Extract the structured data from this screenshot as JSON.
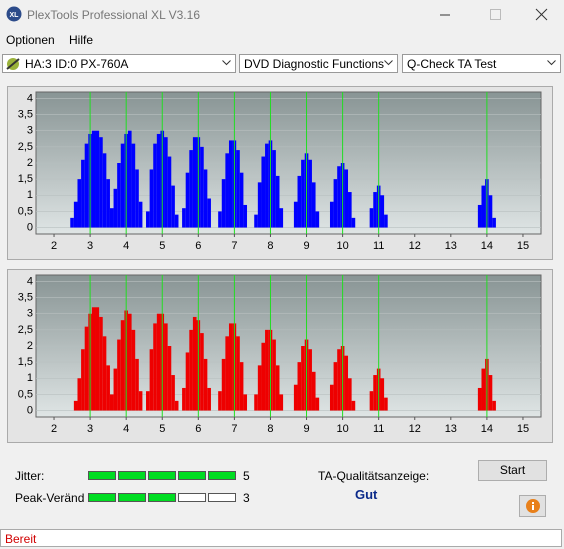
{
  "window": {
    "title": "PlexTools Professional XL V3.16"
  },
  "menu": [
    "Optionen",
    "Hilfe"
  ],
  "toolbar": {
    "drive": "HA:3 ID:0  PX-760A",
    "function": "DVD Diagnostic Functions",
    "test": "Q-Check TA Test"
  },
  "chart_data": [
    {
      "type": "bar",
      "color": "#0000ff",
      "marker_color": "#22dd22",
      "grid": true,
      "xlim": [
        1.5,
        15.5
      ],
      "ylim": [
        -0.2,
        4.2
      ],
      "xticks": [
        2,
        3,
        4,
        5,
        6,
        7,
        8,
        9,
        10,
        11,
        12,
        13,
        14,
        15
      ],
      "yticks": [
        0,
        {
          "value": 0.5,
          "label": "0,5"
        },
        1,
        {
          "value": 1.5,
          "label": "1,5"
        },
        2,
        {
          "value": 2.5,
          "label": "2,5"
        },
        3,
        {
          "value": 3.5,
          "label": "3,5"
        },
        4
      ],
      "markers": [
        3,
        4,
        5,
        6,
        7,
        8,
        9,
        10,
        11,
        14
      ],
      "x": [
        2.5,
        2.6,
        2.7,
        2.8,
        2.9,
        3.0,
        3.1,
        3.2,
        3.3,
        3.4,
        3.5,
        3.6,
        3.7,
        3.8,
        3.9,
        4.0,
        4.1,
        4.2,
        4.3,
        4.4,
        4.6,
        4.7,
        4.8,
        4.9,
        5.0,
        5.1,
        5.2,
        5.3,
        5.4,
        5.6,
        5.7,
        5.8,
        5.9,
        6.0,
        6.1,
        6.2,
        6.3,
        6.6,
        6.7,
        6.8,
        6.9,
        7.0,
        7.1,
        7.2,
        7.3,
        7.6,
        7.7,
        7.8,
        7.9,
        8.0,
        8.1,
        8.2,
        8.3,
        8.7,
        8.8,
        8.9,
        9.0,
        9.1,
        9.2,
        9.3,
        9.7,
        9.8,
        9.9,
        10.0,
        10.1,
        10.2,
        10.3,
        10.8,
        10.9,
        11.0,
        11.1,
        11.2,
        13.8,
        13.9,
        14.0,
        14.1,
        14.2
      ],
      "values": [
        0.3,
        0.8,
        1.5,
        2.1,
        2.6,
        2.9,
        3.0,
        3.0,
        2.8,
        2.3,
        1.5,
        0.6,
        1.2,
        2.0,
        2.6,
        2.9,
        3.0,
        2.6,
        1.8,
        0.8,
        0.5,
        1.8,
        2.6,
        2.9,
        3.0,
        2.8,
        2.2,
        1.3,
        0.4,
        0.6,
        1.7,
        2.4,
        2.8,
        2.8,
        2.5,
        1.8,
        0.9,
        0.5,
        1.5,
        2.3,
        2.7,
        2.7,
        2.4,
        1.7,
        0.7,
        0.4,
        1.4,
        2.2,
        2.6,
        2.7,
        2.4,
        1.6,
        0.6,
        0.8,
        1.6,
        2.1,
        2.3,
        2.1,
        1.4,
        0.5,
        0.8,
        1.5,
        1.9,
        2.0,
        1.8,
        1.1,
        0.3,
        0.6,
        1.1,
        1.3,
        1.0,
        0.4,
        0.7,
        1.3,
        1.5,
        1.0,
        0.3
      ]
    },
    {
      "type": "bar",
      "color": "#ee0000",
      "marker_color": "#22dd22",
      "grid": true,
      "xlim": [
        1.5,
        15.5
      ],
      "ylim": [
        -0.2,
        4.2
      ],
      "xticks": [
        2,
        3,
        4,
        5,
        6,
        7,
        8,
        9,
        10,
        11,
        12,
        13,
        14,
        15
      ],
      "yticks": [
        0,
        {
          "value": 0.5,
          "label": "0,5"
        },
        1,
        {
          "value": 1.5,
          "label": "1,5"
        },
        2,
        {
          "value": 2.5,
          "label": "2,5"
        },
        3,
        {
          "value": 3.5,
          "label": "3,5"
        },
        4
      ],
      "markers": [
        3,
        4,
        5,
        6,
        7,
        8,
        9,
        10,
        11,
        14
      ],
      "x": [
        2.6,
        2.7,
        2.8,
        2.9,
        3.0,
        3.1,
        3.2,
        3.3,
        3.4,
        3.5,
        3.6,
        3.7,
        3.8,
        3.9,
        4.0,
        4.1,
        4.2,
        4.3,
        4.4,
        4.6,
        4.7,
        4.8,
        4.9,
        5.0,
        5.1,
        5.2,
        5.3,
        5.4,
        5.6,
        5.7,
        5.8,
        5.9,
        6.0,
        6.1,
        6.2,
        6.3,
        6.6,
        6.7,
        6.8,
        6.9,
        7.0,
        7.1,
        7.2,
        7.3,
        7.6,
        7.7,
        7.8,
        7.9,
        8.0,
        8.1,
        8.2,
        8.3,
        8.7,
        8.8,
        8.9,
        9.0,
        9.1,
        9.2,
        9.3,
        9.7,
        9.8,
        9.9,
        10.0,
        10.1,
        10.2,
        10.3,
        10.8,
        10.9,
        11.0,
        11.1,
        11.2,
        13.8,
        13.9,
        14.0,
        14.1,
        14.2
      ],
      "values": [
        0.3,
        1.0,
        1.9,
        2.6,
        3.0,
        3.2,
        3.2,
        2.9,
        2.3,
        1.4,
        0.5,
        1.3,
        2.2,
        2.8,
        3.1,
        3.0,
        2.5,
        1.6,
        0.6,
        0.6,
        1.9,
        2.7,
        3.0,
        3.0,
        2.7,
        2.0,
        1.1,
        0.3,
        0.7,
        1.8,
        2.5,
        2.9,
        2.8,
        2.4,
        1.6,
        0.7,
        0.6,
        1.6,
        2.3,
        2.7,
        2.7,
        2.3,
        1.5,
        0.5,
        0.5,
        1.4,
        2.1,
        2.5,
        2.5,
        2.2,
        1.4,
        0.5,
        0.8,
        1.5,
        2.0,
        2.2,
        1.9,
        1.2,
        0.4,
        0.8,
        1.5,
        1.9,
        2.0,
        1.7,
        1.0,
        0.3,
        0.6,
        1.1,
        1.3,
        1.0,
        0.4,
        0.7,
        1.3,
        1.6,
        1.1,
        0.3
      ]
    }
  ],
  "meters": [
    {
      "label": "Jitter:",
      "value": 5,
      "color": "#00dd22"
    },
    {
      "label": "Peak-Veränd",
      "value": 3,
      "color": "#00dd22"
    }
  ],
  "quality": {
    "label": "TA-Qualitätsanzeige:",
    "value": "Gut"
  },
  "buttons": {
    "start": "Start"
  },
  "status": "Bereit"
}
